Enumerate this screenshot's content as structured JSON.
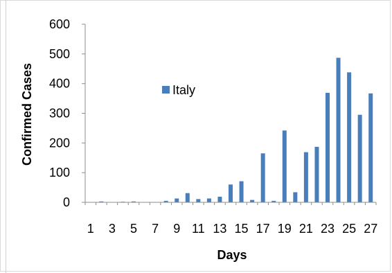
{
  "chart_data": {
    "type": "bar",
    "title": "",
    "xlabel": "Days",
    "ylabel": "Confirmed Cases",
    "ylim": [
      0,
      600
    ],
    "yticks": [
      0,
      100,
      200,
      300,
      400,
      500,
      600
    ],
    "x_tick_labels": [
      "1",
      "3",
      "5",
      "7",
      "9",
      "11",
      "13",
      "15",
      "17",
      "19",
      "21",
      "23",
      "25",
      "27"
    ],
    "categories": [
      1,
      2,
      3,
      4,
      5,
      6,
      7,
      8,
      9,
      10,
      11,
      12,
      13,
      14,
      15,
      16,
      17,
      18,
      19,
      20,
      21,
      22,
      23,
      24,
      25,
      26,
      27
    ],
    "series": [
      {
        "name": "Italy",
        "color": "#4a7ebb",
        "values": [
          0,
          3,
          0,
          2,
          3,
          0,
          0,
          5,
          13,
          31,
          11,
          13,
          19,
          60,
          71,
          8,
          165,
          5,
          242,
          34,
          169,
          187,
          369,
          487,
          438,
          295,
          367
        ]
      }
    ],
    "legend": "inside-upper-left",
    "grid": false
  }
}
